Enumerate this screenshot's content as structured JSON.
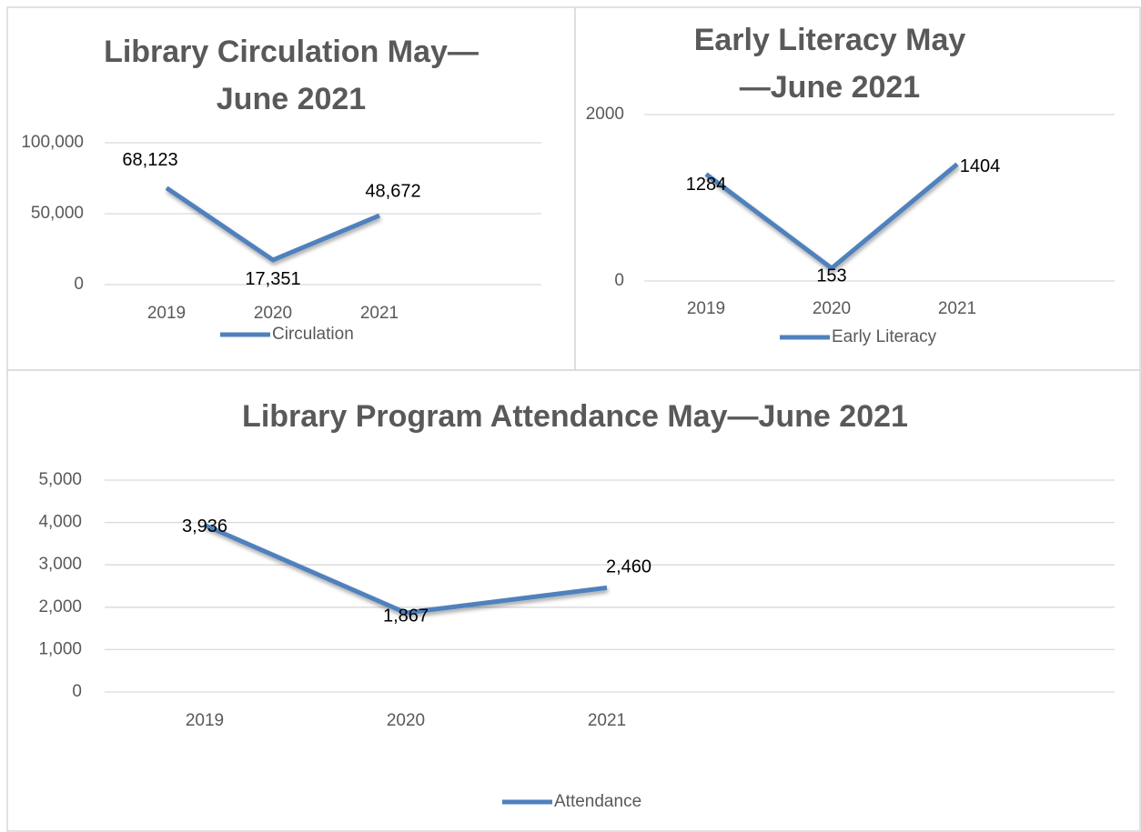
{
  "chart_data": [
    {
      "type": "line",
      "title": "Library Circulation May—June 2021",
      "categories": [
        "2019",
        "2020",
        "2021"
      ],
      "series": [
        {
          "name": "Circulation",
          "color": "#4f81bd",
          "values": [
            68123,
            17351,
            48672
          ],
          "value_labels": [
            "68,123",
            "17,351",
            "48,672"
          ]
        }
      ],
      "ylim": [
        0,
        100000
      ],
      "yticks": [
        0,
        {
          "value": 50000,
          "label": "50,000"
        },
        {
          "value": 100000,
          "label": "100,000"
        }
      ],
      "grid": true,
      "legend": "bottom"
    },
    {
      "type": "line",
      "title": "Early Literacy May—June 2021",
      "categories": [
        "2019",
        "2020",
        "2021"
      ],
      "series": [
        {
          "name": "Early Literacy",
          "color": "#4f81bd",
          "values": [
            1284,
            153,
            1404
          ]
        }
      ],
      "ylim": [
        0,
        2000
      ],
      "yticks": [
        0,
        2000
      ],
      "grid": true,
      "legend": "bottom"
    },
    {
      "type": "line",
      "title": "Library Program Attendance May—June 2021",
      "categories": [
        "2019",
        "2020",
        "2021"
      ],
      "series": [
        {
          "name": "Attendance",
          "color": "#4f81bd",
          "values": [
            3936,
            1867,
            2460
          ],
          "value_labels": [
            "3,936",
            "1,867",
            "2,460"
          ]
        }
      ],
      "ylim": [
        0,
        5000
      ],
      "yticks": [
        0,
        {
          "value": 1000,
          "label": "1,000"
        },
        {
          "value": 2000,
          "label": "2,000"
        },
        {
          "value": 3000,
          "label": "3,000"
        },
        {
          "value": 4000,
          "label": "4,000"
        },
        {
          "value": 5000,
          "label": "5,000"
        }
      ],
      "grid": true,
      "legend": "bottom"
    }
  ]
}
